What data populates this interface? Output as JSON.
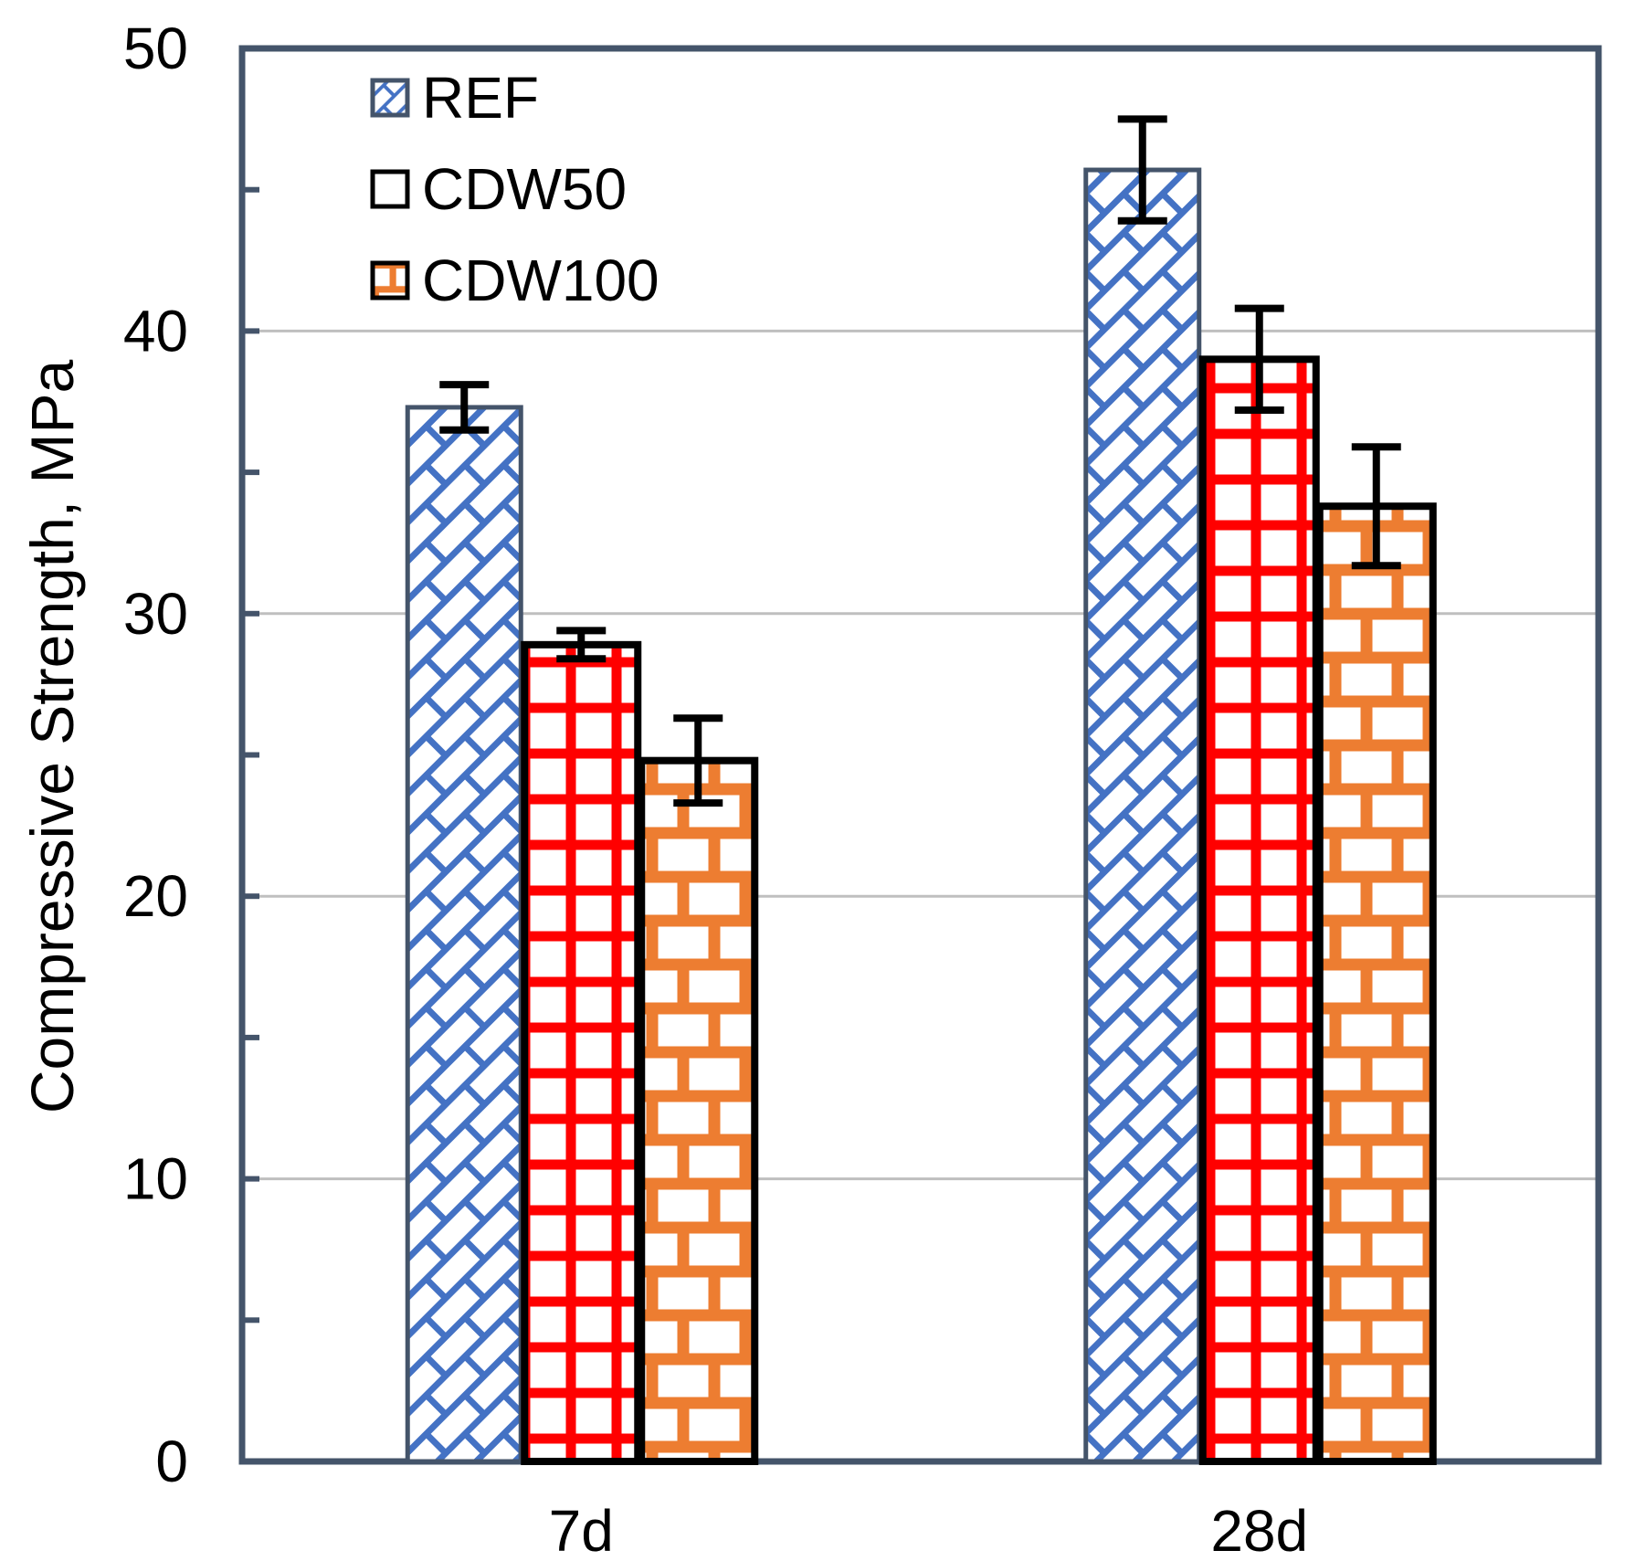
{
  "chart_data": {
    "type": "bar",
    "title": "",
    "xlabel": "",
    "ylabel": "Compressive Strength, MPa",
    "categories": [
      "7d",
      "28d"
    ],
    "series": [
      {
        "name": "REF",
        "values": [
          37.3,
          45.7
        ],
        "errors": [
          0.8,
          1.8
        ],
        "pattern": "diagonal-brick",
        "color": "#4472C4",
        "border_color": "#44546A",
        "legend_swatch": "pattern"
      },
      {
        "name": "CDW50",
        "values": [
          28.9,
          39.0
        ],
        "errors": [
          0.5,
          1.8
        ],
        "pattern": "grid",
        "color": "#FF0000",
        "border_color": "#000000",
        "legend_swatch": "plain-white"
      },
      {
        "name": "CDW100",
        "values": [
          24.8,
          33.8
        ],
        "errors": [
          1.5,
          2.1
        ],
        "pattern": "brick",
        "color": "#ED7D31",
        "border_color": "#000000",
        "legend_swatch": "pattern"
      }
    ],
    "ylim": [
      0,
      50
    ],
    "ytick_step": 10,
    "minor_tick_step": 5,
    "ytick_labels": [
      "0",
      "10",
      "20",
      "30",
      "40",
      "50"
    ],
    "grid": true,
    "gridline_color": "#BFBFBF",
    "axis_color": "#44546A",
    "error_bar_color": "#000000",
    "legend_position": "top-left-inside"
  }
}
